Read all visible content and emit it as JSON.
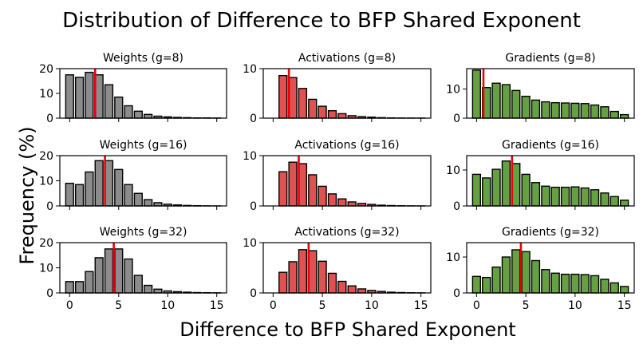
{
  "figure": {
    "title": "Distribution of Difference to BFP Shared Exponent",
    "xlabel": "Difference to BFP Shared Exponent",
    "ylabel": "Frequency (%)"
  },
  "chart_data": [
    {
      "type": "bar",
      "title": "Weights (g=8)",
      "color": "#8c8c8c",
      "ylim": [
        0,
        20
      ],
      "yticks": [
        0,
        10,
        20
      ],
      "xlim": [
        -1,
        16
      ],
      "xticks": [
        0,
        5,
        10,
        15
      ],
      "show_xticks": false,
      "marker": 2.6,
      "x": [
        0,
        1,
        2,
        3,
        4,
        5,
        6,
        7,
        8,
        9,
        10,
        11,
        12,
        13,
        14,
        15
      ],
      "values": [
        17.5,
        16.5,
        18.5,
        17.5,
        13.5,
        8.5,
        5.0,
        2.8,
        1.5,
        0.8,
        0.5,
        0.3,
        0.2,
        0.1,
        0.1,
        0.05
      ]
    },
    {
      "type": "bar",
      "title": "Activations (g=8)",
      "color": "#e05252",
      "ylim": [
        0,
        10
      ],
      "yticks": [
        0,
        10
      ],
      "xlim": [
        -1,
        16
      ],
      "xticks": [
        0,
        5,
        10,
        15
      ],
      "show_xticks": false,
      "marker": 1.6,
      "x": [
        1,
        2,
        3,
        4,
        5,
        6,
        7,
        8,
        9,
        10,
        11,
        12,
        13,
        14,
        15
      ],
      "values": [
        8.6,
        8.2,
        6.0,
        3.8,
        2.4,
        1.5,
        0.9,
        0.5,
        0.3,
        0.2,
        0.1,
        0.05,
        0.03,
        0.02,
        0.01
      ]
    },
    {
      "type": "bar",
      "title": "Gradients (g=8)",
      "color": "#65a042",
      "ylim": [
        0,
        17
      ],
      "yticks": [
        0,
        10
      ],
      "xlim": [
        -1,
        16
      ],
      "xticks": [
        0,
        5,
        10,
        15
      ],
      "show_xticks": false,
      "marker": 0.7,
      "x": [
        0,
        1,
        2,
        3,
        4,
        5,
        6,
        7,
        8,
        9,
        10,
        11,
        12,
        13,
        14,
        15
      ],
      "values": [
        16.5,
        10.5,
        12.0,
        11.5,
        9.5,
        7.5,
        6.2,
        5.6,
        5.3,
        5.2,
        5.1,
        5.0,
        4.5,
        3.9,
        2.3,
        1.2
      ]
    },
    {
      "type": "bar",
      "title": "Weights (g=16)",
      "color": "#8c8c8c",
      "ylim": [
        0,
        20
      ],
      "yticks": [
        0,
        10,
        20
      ],
      "xlim": [
        -1,
        16
      ],
      "xticks": [
        0,
        5,
        10,
        15
      ],
      "show_xticks": false,
      "marker": 3.6,
      "x": [
        0,
        1,
        2,
        3,
        4,
        5,
        6,
        7,
        8,
        9,
        10,
        11,
        12,
        13,
        14,
        15
      ],
      "values": [
        9.0,
        8.5,
        13.5,
        18.0,
        18.0,
        14.5,
        8.5,
        5.0,
        2.5,
        1.3,
        0.7,
        0.4,
        0.2,
        0.1,
        0.05,
        0.02
      ]
    },
    {
      "type": "bar",
      "title": "Activations (g=16)",
      "color": "#e05252",
      "ylim": [
        0,
        10
      ],
      "yticks": [
        0,
        10
      ],
      "xlim": [
        -1,
        16
      ],
      "xticks": [
        0,
        5,
        10,
        15
      ],
      "show_xticks": false,
      "marker": 2.6,
      "x": [
        1,
        2,
        3,
        4,
        5,
        6,
        7,
        8,
        9,
        10,
        11,
        12,
        13,
        14,
        15
      ],
      "values": [
        6.8,
        8.7,
        8.4,
        6.2,
        3.9,
        2.4,
        1.4,
        0.8,
        0.5,
        0.3,
        0.15,
        0.08,
        0.04,
        0.02,
        0.01
      ]
    },
    {
      "type": "bar",
      "title": "Gradients (g=16)",
      "color": "#65a042",
      "ylim": [
        0,
        14
      ],
      "yticks": [
        0,
        10
      ],
      "xlim": [
        -1,
        16
      ],
      "xticks": [
        0,
        5,
        10,
        15
      ],
      "show_xticks": false,
      "marker": 3.6,
      "x": [
        0,
        1,
        2,
        3,
        4,
        5,
        6,
        7,
        8,
        9,
        10,
        11,
        12,
        13,
        14,
        15
      ],
      "values": [
        8.8,
        7.8,
        10.2,
        12.5,
        11.8,
        8.8,
        6.5,
        5.5,
        5.2,
        5.2,
        5.3,
        5.0,
        4.5,
        3.6,
        2.6,
        1.6
      ]
    },
    {
      "type": "bar",
      "title": "Weights (g=32)",
      "color": "#8c8c8c",
      "ylim": [
        0,
        20
      ],
      "yticks": [
        0,
        10,
        20
      ],
      "xlim": [
        -1,
        16
      ],
      "xticks": [
        0,
        5,
        10,
        15
      ],
      "show_xticks": true,
      "marker": 4.5,
      "x": [
        0,
        1,
        2,
        3,
        4,
        5,
        6,
        7,
        8,
        9,
        10,
        11,
        12,
        13,
        14,
        15
      ],
      "values": [
        4.5,
        4.5,
        8.5,
        14.0,
        17.5,
        17.5,
        13.5,
        7.0,
        3.0,
        1.5,
        0.8,
        0.5,
        0.3,
        0.15,
        0.1,
        0.05
      ]
    },
    {
      "type": "bar",
      "title": "Activations (g=32)",
      "color": "#e05252",
      "ylim": [
        0,
        10
      ],
      "yticks": [
        0,
        10
      ],
      "xlim": [
        -1,
        16
      ],
      "xticks": [
        0,
        5,
        10,
        15
      ],
      "show_xticks": true,
      "marker": 3.6,
      "x": [
        1,
        2,
        3,
        4,
        5,
        6,
        7,
        8,
        9,
        10,
        11,
        12,
        13,
        14,
        15
      ],
      "values": [
        4.1,
        6.2,
        8.6,
        8.4,
        6.3,
        3.9,
        2.3,
        1.4,
        0.8,
        0.5,
        0.3,
        0.15,
        0.08,
        0.04,
        0.02
      ]
    },
    {
      "type": "bar",
      "title": "Gradients (g=32)",
      "color": "#65a042",
      "ylim": [
        0,
        14
      ],
      "yticks": [
        0,
        10
      ],
      "xlim": [
        -1,
        16
      ],
      "xticks": [
        0,
        5,
        10,
        15
      ],
      "show_xticks": true,
      "marker": 4.5,
      "x": [
        0,
        1,
        2,
        3,
        4,
        5,
        6,
        7,
        8,
        9,
        10,
        11,
        12,
        13,
        14,
        15
      ],
      "values": [
        4.6,
        4.3,
        7.2,
        10.0,
        12.0,
        11.5,
        9.0,
        6.5,
        5.5,
        5.2,
        5.2,
        5.1,
        4.8,
        3.8,
        2.8,
        1.8
      ]
    }
  ]
}
